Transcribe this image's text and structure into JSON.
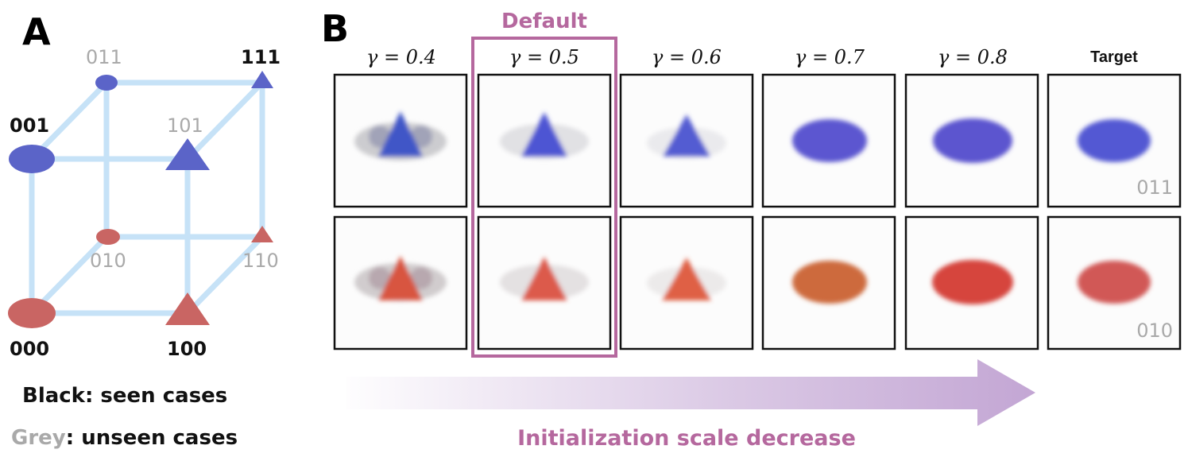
{
  "panel_a": {
    "letter": "A",
    "vertices": {
      "v000": "000",
      "v001": "001",
      "v010": "010",
      "v011": "011",
      "v100": "100",
      "v101": "101",
      "v110": "110",
      "v111": "111"
    },
    "legend": {
      "black_word": "Black",
      "black_rest": ": seen cases",
      "grey_word": "Grey",
      "grey_rest": ": unseen cases"
    },
    "colors": {
      "edge": "#c6e2f7",
      "blue_shape": "#5b64c8",
      "red_shape": "#c96563",
      "seen_text": "#111111",
      "unseen_text": "#a9a9a9"
    }
  },
  "panel_b": {
    "letter": "B",
    "default_label": "Default",
    "columns": [
      {
        "label": "γ = 0.4"
      },
      {
        "label": "γ = 0.5"
      },
      {
        "label": "γ = 0.6"
      },
      {
        "label": "γ = 0.7"
      },
      {
        "label": "γ = 0.8"
      },
      {
        "label": "Target"
      }
    ],
    "row_codes": [
      "011",
      "010"
    ],
    "arrow_label": "Initialization scale decrease",
    "colors": {
      "highlight": "#b5689e",
      "arrow": "#c3a6d4",
      "blue": "#5a5fd0",
      "red": "#d9584a"
    }
  }
}
